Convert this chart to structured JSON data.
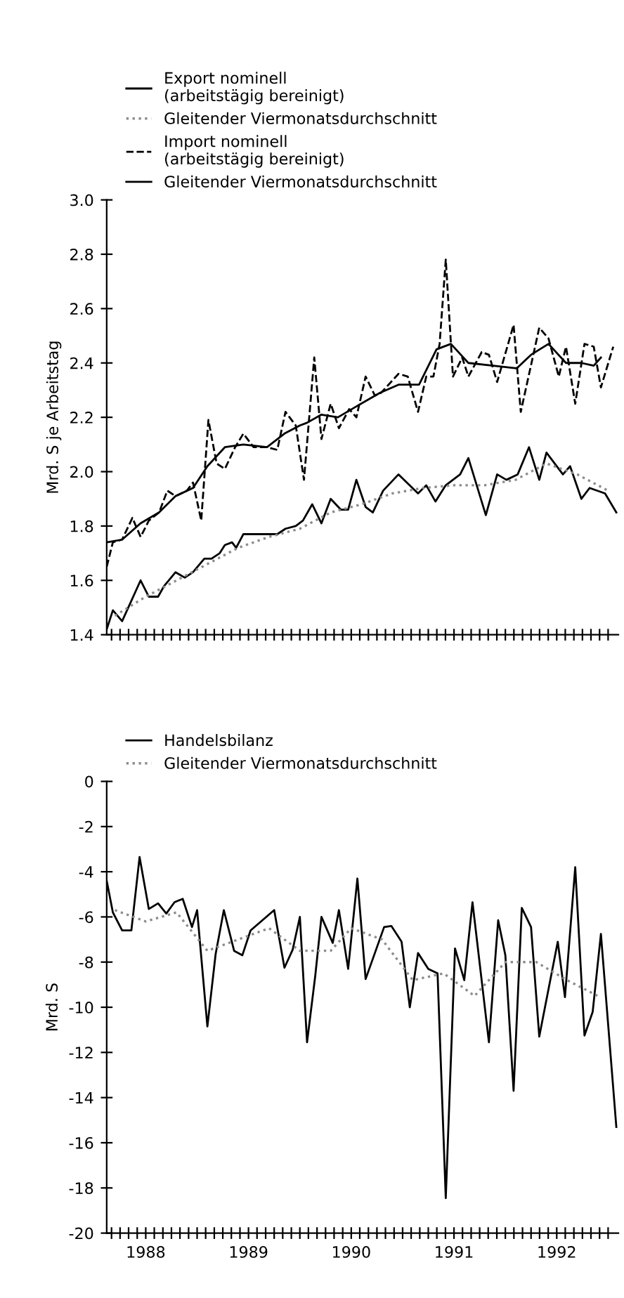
{
  "chart_data": [
    {
      "type": "line",
      "ylabel": "Mrd. S je Arbeitstag",
      "legend": "top",
      "grid": false,
      "marker": "none",
      "tick_labels": "y",
      "xlim": [
        1988.12,
        1993.1
      ],
      "ylim": [
        1.4,
        3.0
      ],
      "yticks": [
        1.4,
        1.6,
        1.8,
        {
          "value": 2.0,
          "label": "2.0"
        },
        2.2,
        2.4,
        2.6,
        2.8,
        {
          "value": 3.0,
          "label": "3.0"
        }
      ],
      "xticks": [
        {
          "value": 1988.167,
          "label": null
        },
        {
          "value": 1988.25,
          "label": null
        },
        {
          "value": 1988.333,
          "label": null
        },
        {
          "value": 1988.417,
          "label": null
        },
        {
          "value": 1988.5,
          "label": null
        },
        {
          "value": 1988.583,
          "label": null
        },
        {
          "value": 1988.667,
          "label": null
        },
        {
          "value": 1988.75,
          "label": null
        },
        {
          "value": 1988.833,
          "label": null
        },
        {
          "value": 1988.917,
          "label": null
        },
        {
          "value": 1989,
          "label": null
        },
        {
          "value": 1989.083,
          "label": null
        },
        {
          "value": 1989.167,
          "label": null
        },
        {
          "value": 1989.25,
          "label": null
        },
        {
          "value": 1989.333,
          "label": null
        },
        {
          "value": 1989.417,
          "label": null
        },
        {
          "value": 1989.5,
          "label": null
        },
        {
          "value": 1989.583,
          "label": null
        },
        {
          "value": 1989.667,
          "label": null
        },
        {
          "value": 1989.75,
          "label": null
        },
        {
          "value": 1989.833,
          "label": null
        },
        {
          "value": 1989.917,
          "label": null
        },
        {
          "value": 1990,
          "label": null
        },
        {
          "value": 1990.083,
          "label": null
        },
        {
          "value": 1990.167,
          "label": null
        },
        {
          "value": 1990.25,
          "label": null
        },
        {
          "value": 1990.333,
          "label": null
        },
        {
          "value": 1990.417,
          "label": null
        },
        {
          "value": 1990.5,
          "label": null
        },
        {
          "value": 1990.583,
          "label": null
        },
        {
          "value": 1990.667,
          "label": null
        },
        {
          "value": 1990.75,
          "label": null
        },
        {
          "value": 1990.833,
          "label": null
        },
        {
          "value": 1990.917,
          "label": null
        },
        {
          "value": 1991,
          "label": null
        },
        {
          "value": 1991.083,
          "label": null
        },
        {
          "value": 1991.167,
          "label": null
        },
        {
          "value": 1991.25,
          "label": null
        },
        {
          "value": 1991.333,
          "label": null
        },
        {
          "value": 1991.417,
          "label": null
        },
        {
          "value": 1991.5,
          "label": null
        },
        {
          "value": 1991.583,
          "label": null
        },
        {
          "value": 1991.667,
          "label": null
        },
        {
          "value": 1991.75,
          "label": null
        },
        {
          "value": 1991.833,
          "label": null
        },
        {
          "value": 1991.917,
          "label": null
        },
        {
          "value": 1992,
          "label": null
        },
        {
          "value": 1992.083,
          "label": null
        },
        {
          "value": 1992.167,
          "label": null
        },
        {
          "value": 1992.25,
          "label": null
        },
        {
          "value": 1992.333,
          "label": null
        },
        {
          "value": 1992.417,
          "label": null
        },
        {
          "value": 1992.5,
          "label": null
        },
        {
          "value": 1992.583,
          "label": null
        },
        {
          "value": 1992.667,
          "label": null
        },
        {
          "value": 1992.75,
          "label": null
        },
        {
          "value": 1992.833,
          "label": null
        },
        {
          "value": 1992.917,
          "label": null
        },
        {
          "value": 1993,
          "label": null
        }
      ],
      "series": [
        {
          "name": "Export nominell\n(arbeitstägig bereinigt)",
          "color": "#000000",
          "line_style": "solid",
          "x": [
            1988.12,
            1988.18,
            1988.27,
            1988.45,
            1988.53,
            1988.62,
            1988.68,
            1988.79,
            1988.88,
            1988.96,
            1989.07,
            1989.14,
            1989.22,
            1989.27,
            1989.34,
            1989.38,
            1989.45,
            1989.58,
            1989.68,
            1989.78,
            1989.86,
            1989.96,
            1990.03,
            1990.12,
            1990.21,
            1990.3,
            1990.4,
            1990.47,
            1990.55,
            1990.64,
            1990.71,
            1990.81,
            1990.96,
            1991.15,
            1991.23,
            1991.32,
            1991.42,
            1991.56,
            1991.64,
            1991.81,
            1991.92,
            1992.01,
            1992.12,
            1992.23,
            1992.33,
            1992.4,
            1992.56,
            1992.63,
            1992.74,
            1992.82,
            1992.97,
            1993.08
          ],
          "values": [
            1.42,
            1.49,
            1.45,
            1.6,
            1.54,
            1.54,
            1.58,
            1.63,
            1.61,
            1.63,
            1.68,
            1.68,
            1.7,
            1.73,
            1.74,
            1.72,
            1.77,
            1.77,
            1.77,
            1.77,
            1.79,
            1.8,
            1.82,
            1.88,
            1.81,
            1.9,
            1.86,
            1.86,
            1.97,
            1.87,
            1.85,
            1.93,
            1.99,
            1.92,
            1.95,
            1.89,
            1.95,
            1.99,
            2.05,
            1.84,
            1.99,
            1.97,
            1.99,
            2.09,
            1.97,
            2.07,
            1.99,
            2.02,
            1.9,
            1.94,
            1.92,
            1.85
          ]
        },
        {
          "name": "Gleitender Viermonatsdurchschnitt",
          "color": "#8c8c8c",
          "line_style": "dotted",
          "x": [
            1988.2,
            1988.5,
            1988.8,
            1989.1,
            1989.4,
            1989.7,
            1990.0,
            1990.3,
            1990.6,
            1990.9,
            1991.2,
            1991.5,
            1991.8,
            1992.1,
            1992.4,
            1992.7,
            1993.0
          ],
          "values": [
            1.47,
            1.54,
            1.6,
            1.66,
            1.72,
            1.76,
            1.79,
            1.85,
            1.88,
            1.92,
            1.94,
            1.95,
            1.95,
            1.97,
            2.03,
            1.99,
            1.93
          ]
        },
        {
          "name": "Import nominell\n(arbeitstägig bereinigt)",
          "color": "#000000",
          "line_style": "dashed",
          "x": [
            1988.12,
            1988.18,
            1988.27,
            1988.37,
            1988.45,
            1988.53,
            1988.63,
            1988.71,
            1988.79,
            1988.9,
            1988.96,
            1989.04,
            1989.11,
            1989.19,
            1989.27,
            1989.37,
            1989.45,
            1989.55,
            1989.68,
            1989.78,
            1989.86,
            1989.96,
            1990.04,
            1990.14,
            1990.21,
            1990.3,
            1990.38,
            1990.48,
            1990.55,
            1990.64,
            1990.73,
            1990.79,
            1990.96,
            1991.05,
            1991.15,
            1991.23,
            1991.3,
            1991.36,
            1991.42,
            1991.49,
            1991.58,
            1991.64,
            1991.77,
            1991.84,
            1991.92,
            1992.08,
            1992.15,
            1992.33,
            1992.42,
            1992.52,
            1992.59,
            1992.68,
            1992.77,
            1992.86,
            1992.93,
            1993.05
          ],
          "values": [
            1.65,
            1.74,
            1.75,
            1.83,
            1.76,
            1.82,
            1.85,
            1.93,
            1.91,
            1.93,
            1.96,
            1.82,
            2.19,
            2.03,
            2.01,
            2.09,
            2.14,
            2.09,
            2.09,
            2.08,
            2.22,
            2.17,
            1.97,
            2.42,
            2.12,
            2.25,
            2.16,
            2.23,
            2.2,
            2.35,
            2.28,
            2.29,
            2.36,
            2.35,
            2.22,
            2.35,
            2.35,
            2.47,
            2.78,
            2.35,
            2.42,
            2.35,
            2.44,
            2.43,
            2.33,
            2.54,
            2.22,
            2.53,
            2.49,
            2.35,
            2.46,
            2.25,
            2.47,
            2.46,
            2.31,
            2.46
          ]
        },
        {
          "name": "Gleitender Viermonatsdurchschnitt",
          "color": "#000000",
          "line_style": "solid",
          "x": [
            1988.12,
            1988.27,
            1988.45,
            1988.63,
            1988.79,
            1988.96,
            1989.1,
            1989.27,
            1989.45,
            1989.68,
            1989.85,
            1990.0,
            1990.07,
            1990.21,
            1990.37,
            1990.55,
            1990.78,
            1990.96,
            1991.16,
            1991.33,
            1991.47,
            1991.64,
            1991.88,
            1992.11,
            1992.25,
            1992.42,
            1992.59,
            1992.74,
            1992.86,
            1992.93
          ],
          "values": [
            1.74,
            1.75,
            1.81,
            1.85,
            1.91,
            1.94,
            2.02,
            2.09,
            2.1,
            2.09,
            2.14,
            2.17,
            2.18,
            2.21,
            2.2,
            2.24,
            2.29,
            2.32,
            2.32,
            2.45,
            2.47,
            2.4,
            2.39,
            2.38,
            2.43,
            2.47,
            2.4,
            2.4,
            2.39,
            2.42
          ]
        }
      ]
    },
    {
      "type": "line",
      "ylabel": "Mrd. S",
      "legend": "top",
      "grid": false,
      "marker": "none",
      "xlim": [
        1988.12,
        1993.1
      ],
      "ylim": [
        -20,
        0
      ],
      "yticks": [
        -20,
        -18,
        -16,
        -14,
        -12,
        -10,
        -8,
        -6,
        -4,
        -2,
        0
      ],
      "xticks": [
        {
          "value": 1988.167,
          "label": null
        },
        {
          "value": 1988.25,
          "label": null
        },
        {
          "value": 1988.333,
          "label": null
        },
        {
          "value": 1988.417,
          "label": null
        },
        {
          "value": 1988.5,
          "label": "1988"
        },
        {
          "value": 1988.583,
          "label": null
        },
        {
          "value": 1988.667,
          "label": null
        },
        {
          "value": 1988.75,
          "label": null
        },
        {
          "value": 1988.833,
          "label": null
        },
        {
          "value": 1988.917,
          "label": null
        },
        {
          "value": 1989,
          "label": null
        },
        {
          "value": 1989.083,
          "label": null
        },
        {
          "value": 1989.167,
          "label": null
        },
        {
          "value": 1989.25,
          "label": null
        },
        {
          "value": 1989.333,
          "label": null
        },
        {
          "value": 1989.417,
          "label": null
        },
        {
          "value": 1989.5,
          "label": "1989"
        },
        {
          "value": 1989.583,
          "label": null
        },
        {
          "value": 1989.667,
          "label": null
        },
        {
          "value": 1989.75,
          "label": null
        },
        {
          "value": 1989.833,
          "label": null
        },
        {
          "value": 1989.917,
          "label": null
        },
        {
          "value": 1990,
          "label": null
        },
        {
          "value": 1990.083,
          "label": null
        },
        {
          "value": 1990.167,
          "label": null
        },
        {
          "value": 1990.25,
          "label": null
        },
        {
          "value": 1990.333,
          "label": null
        },
        {
          "value": 1990.417,
          "label": null
        },
        {
          "value": 1990.5,
          "label": "1990"
        },
        {
          "value": 1990.583,
          "label": null
        },
        {
          "value": 1990.667,
          "label": null
        },
        {
          "value": 1990.75,
          "label": null
        },
        {
          "value": 1990.833,
          "label": null
        },
        {
          "value": 1990.917,
          "label": null
        },
        {
          "value": 1991,
          "label": null
        },
        {
          "value": 1991.083,
          "label": null
        },
        {
          "value": 1991.167,
          "label": null
        },
        {
          "value": 1991.25,
          "label": null
        },
        {
          "value": 1991.333,
          "label": null
        },
        {
          "value": 1991.417,
          "label": null
        },
        {
          "value": 1991.5,
          "label": "1991"
        },
        {
          "value": 1991.583,
          "label": null
        },
        {
          "value": 1991.667,
          "label": null
        },
        {
          "value": 1991.75,
          "label": null
        },
        {
          "value": 1991.833,
          "label": null
        },
        {
          "value": 1991.917,
          "label": null
        },
        {
          "value": 1992,
          "label": null
        },
        {
          "value": 1992.083,
          "label": null
        },
        {
          "value": 1992.167,
          "label": null
        },
        {
          "value": 1992.25,
          "label": null
        },
        {
          "value": 1992.333,
          "label": null
        },
        {
          "value": 1992.417,
          "label": null
        },
        {
          "value": 1992.5,
          "label": "1992"
        },
        {
          "value": 1992.583,
          "label": null
        },
        {
          "value": 1992.667,
          "label": null
        },
        {
          "value": 1992.75,
          "label": null
        },
        {
          "value": 1992.833,
          "label": null
        },
        {
          "value": 1992.917,
          "label": null
        },
        {
          "value": 1993,
          "label": null
        }
      ],
      "series": [
        {
          "name": "Handelsbilanz",
          "color": "#000000",
          "line_style": "solid",
          "x": [
            1988.12,
            1988.18,
            1988.27,
            1988.36,
            1988.44,
            1988.53,
            1988.62,
            1988.7,
            1988.78,
            1988.86,
            1988.95,
            1989.0,
            1989.1,
            1989.18,
            1989.26,
            1989.36,
            1989.44,
            1989.52,
            1989.75,
            1989.85,
            1989.93,
            1990.0,
            1990.07,
            1990.15,
            1990.21,
            1990.32,
            1990.38,
            1990.47,
            1990.56,
            1990.64,
            1990.82,
            1990.89,
            1990.99,
            1991.07,
            1991.15,
            1991.25,
            1991.34,
            1991.42,
            1991.51,
            1991.6,
            1991.68,
            1991.84,
            1991.93,
            1992.0,
            1992.08,
            1992.16,
            1992.25,
            1992.33,
            1992.51,
            1992.58,
            1992.68,
            1992.77,
            1992.85,
            1992.93,
            1993.08
          ],
          "values": [
            -4.4,
            -5.8,
            -6.6,
            -6.6,
            -3.35,
            -5.65,
            -5.4,
            -5.85,
            -5.35,
            -5.2,
            -6.45,
            -5.7,
            -10.85,
            -7.65,
            -5.7,
            -7.5,
            -7.7,
            -6.6,
            -5.7,
            -8.25,
            -7.45,
            -6.0,
            -11.55,
            -8.6,
            -6.0,
            -7.15,
            -5.7,
            -8.3,
            -4.3,
            -8.75,
            -6.45,
            -6.4,
            -7.1,
            -10.0,
            -7.6,
            -8.3,
            -8.5,
            -18.45,
            -7.4,
            -8.8,
            -5.35,
            -11.55,
            -6.15,
            -7.7,
            -13.7,
            -5.6,
            -6.45,
            -11.3,
            -7.1,
            -9.55,
            -3.8,
            -11.25,
            -10.2,
            -6.75,
            -15.3
          ]
        },
        {
          "name": "Gleitender Viermonatsdurchschnitt",
          "color": "#8c8c8c",
          "line_style": "dotted",
          "x": [
            1988.2,
            1988.5,
            1988.8,
            1989.1,
            1989.4,
            1989.7,
            1990.0,
            1990.3,
            1990.5,
            1990.8,
            1991.1,
            1991.4,
            1991.7,
            1992.0,
            1992.3,
            1992.6,
            1992.9
          ],
          "values": [
            -5.7,
            -6.2,
            -5.8,
            -7.5,
            -7.0,
            -6.5,
            -7.5,
            -7.5,
            -6.5,
            -7.0,
            -8.8,
            -8.5,
            -9.5,
            -8.0,
            -8.0,
            -8.8,
            -9.5
          ]
        }
      ]
    }
  ]
}
